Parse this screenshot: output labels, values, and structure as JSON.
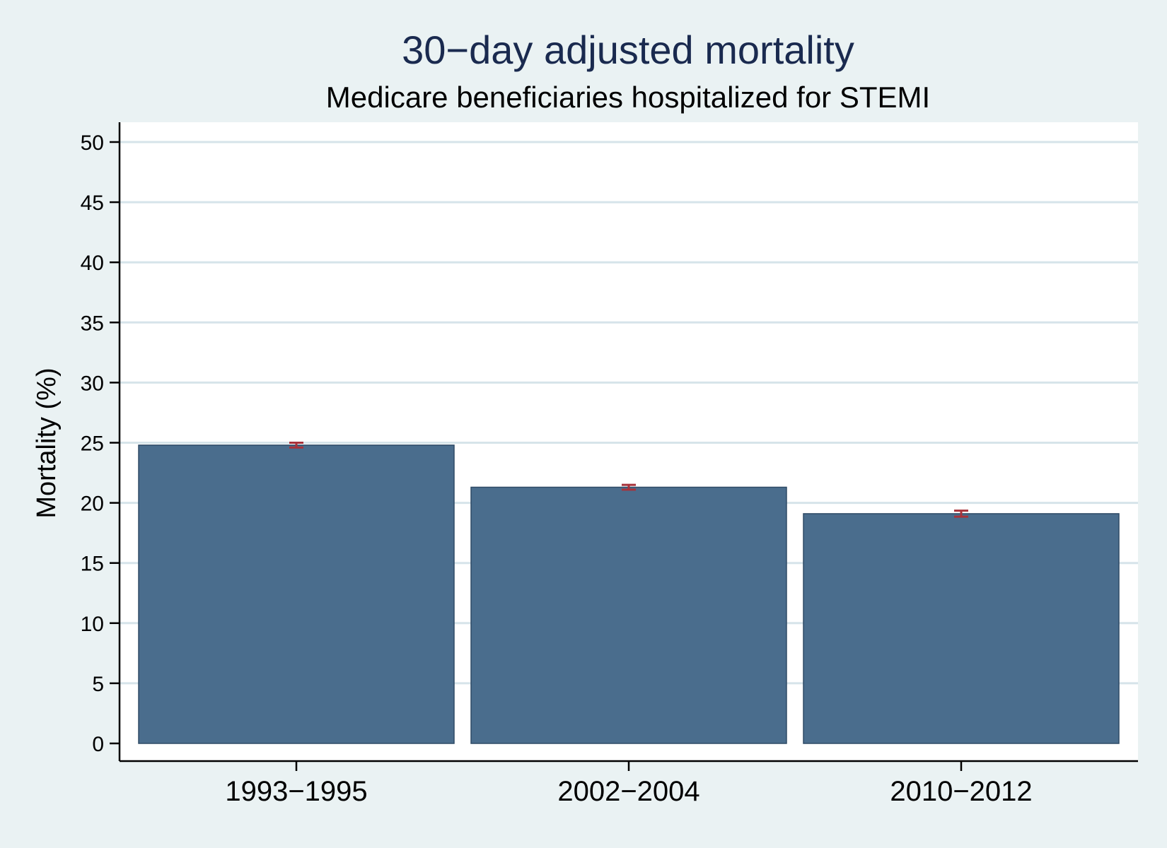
{
  "chart_data": {
    "type": "bar",
    "title": "30−day adjusted mortality",
    "subtitle": "Medicare beneficiaries hospitalized for STEMI",
    "xlabel": "",
    "ylabel": "Mortality (%)",
    "categories": [
      "1993−1995",
      "2002−2004",
      "2010−2012"
    ],
    "values": [
      24.8,
      21.3,
      19.1
    ],
    "error_bars": [
      {
        "low": 24.6,
        "high": 25.0
      },
      {
        "low": 21.1,
        "high": 21.5
      },
      {
        "low": 18.85,
        "high": 19.35
      }
    ],
    "ylim": [
      0,
      50
    ],
    "yticks": [
      0,
      5,
      10,
      15,
      20,
      25,
      30,
      35,
      40,
      45,
      50
    ],
    "grid": true,
    "legend": "none",
    "colors": {
      "bar": "#4a6d8d",
      "bar_edge": "#2f4b66",
      "error_bar": "#a8323a",
      "grid": "#d6e4ea",
      "plot_background": "#ffffff",
      "page_background": "#eaf2f3",
      "title": "#1a2a4f"
    }
  }
}
